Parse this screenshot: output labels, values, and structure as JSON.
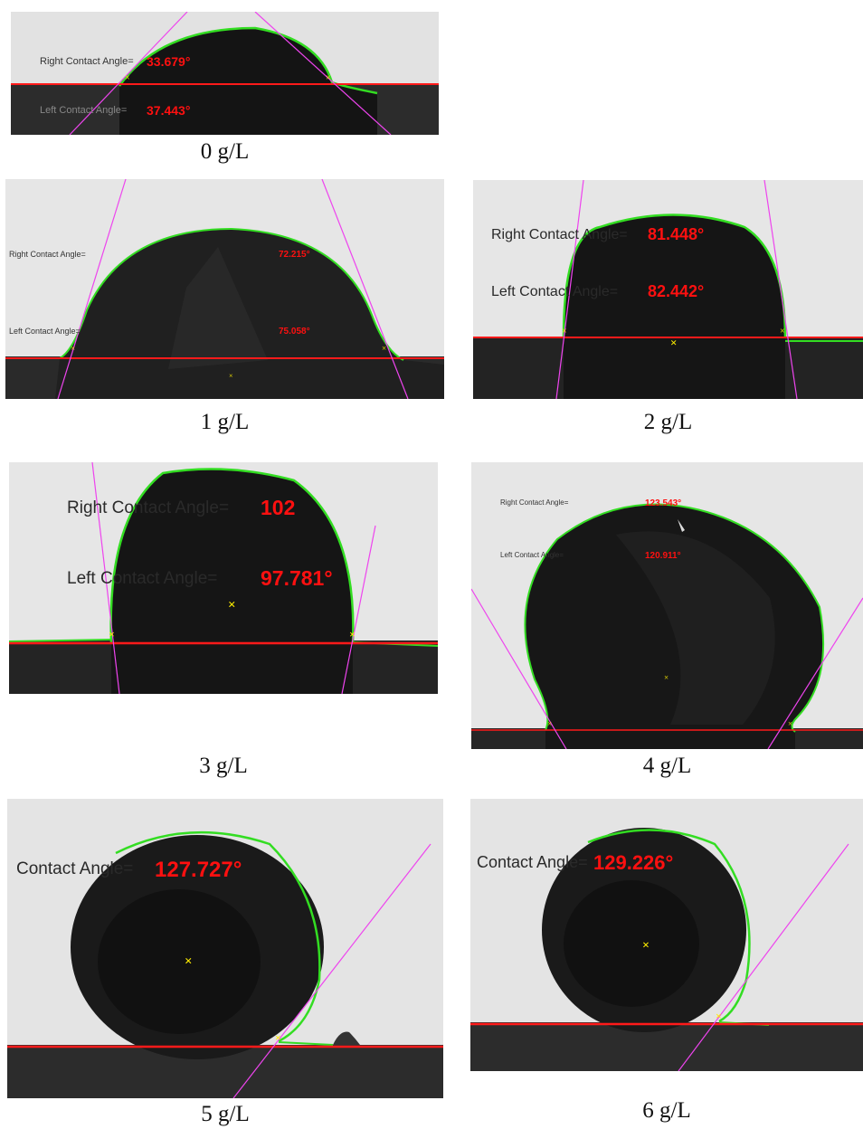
{
  "panels": [
    {
      "id": "p0",
      "caption": "0 g/L",
      "labels": {
        "right": "Right Contact Angle=",
        "right_value": "33.679°",
        "left": "Left Contact Angle=",
        "left_value": "37.443°"
      }
    },
    {
      "id": "p1",
      "caption": "1 g/L",
      "labels": {
        "right": "Right Contact Angle=",
        "right_value": "72.215°",
        "left": "Left Contact Angle=",
        "left_value": "75.058°"
      }
    },
    {
      "id": "p2",
      "caption": "2 g/L",
      "labels": {
        "right": "Right Contact Angle=",
        "right_value": "81.448°",
        "left": "Left Contact Angle=",
        "left_value": "82.442°"
      }
    },
    {
      "id": "p3",
      "caption": "3 g/L",
      "labels": {
        "right": "Right Contact Angle=",
        "right_value": "102",
        "left": "Left Contact Angle=",
        "left_value": "97.781°"
      }
    },
    {
      "id": "p4",
      "caption": "4 g/L",
      "labels": {
        "right": "Right Contact Angle=",
        "right_value": "123.543°",
        "left": "Left Contact Angle=",
        "left_value": "120.911°"
      }
    },
    {
      "id": "p5",
      "caption": "5 g/L",
      "labels": {
        "single": "Contact Angle=",
        "single_value": "127.727°"
      }
    },
    {
      "id": "p6",
      "caption": "6 g/L",
      "labels": {
        "single": "Contact Angle=",
        "single_value": "129.226°"
      }
    }
  ],
  "colors": {
    "background": "#e4e4e4",
    "drop": "#151515",
    "substrate": "#2b2b2b",
    "baseline": "#ff1a1a",
    "fit_outline": "#33dd22",
    "tangent": "#ee44ee",
    "marker": "#ffee00",
    "angle_value": "#ff1010"
  }
}
